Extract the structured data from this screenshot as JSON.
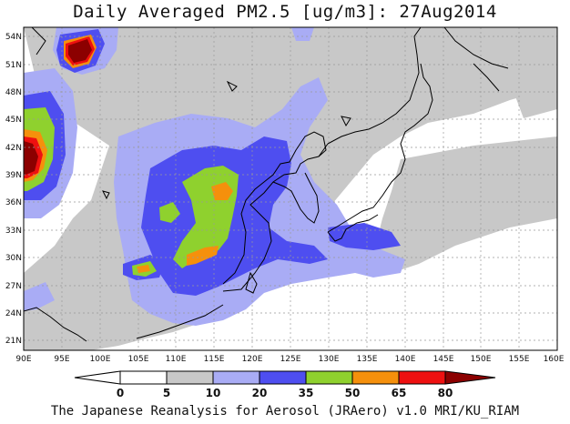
{
  "title": "Daily Averaged PM2.5 [ug/m3]: 27Aug2014",
  "credit": "The Japanese Reanalysis for Aerosol (JRAero) v1.0 MRI/KU_RIAM",
  "lon_ticks": [
    "90E",
    "95E",
    "100E",
    "105E",
    "110E",
    "115E",
    "120E",
    "125E",
    "130E",
    "135E",
    "140E",
    "145E",
    "150E",
    "155E",
    "160E"
  ],
  "lat_ticks": [
    "54N",
    "51N",
    "48N",
    "45N",
    "42N",
    "39N",
    "36N",
    "33N",
    "30N",
    "27N",
    "24N",
    "21N"
  ],
  "colorbar": {
    "labels": [
      "0",
      "5",
      "10",
      "20",
      "35",
      "50",
      "65",
      "80"
    ],
    "colors": [
      "#ffffff",
      "#ffffff",
      "#c8c8c8",
      "#a9acf5",
      "#4e4ef0",
      "#8fd12e",
      "#f5900c",
      "#ee1010",
      "#8c0000"
    ]
  },
  "map": {
    "colors": {
      "gray": "#c8c8c8",
      "light_blue": "#a9acf5",
      "blue": "#4e4ef0",
      "green": "#8fd12e",
      "orange": "#f5900c",
      "red": "#ee1010",
      "dark_red": "#8c0000"
    },
    "lon_range": [
      90,
      160
    ],
    "lat_range": [
      20,
      55
    ]
  }
}
